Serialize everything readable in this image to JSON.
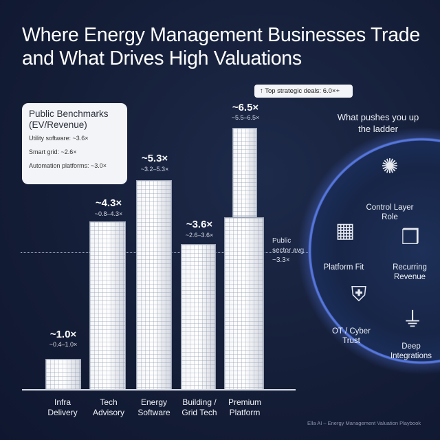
{
  "title": "Where Energy Management Businesses Trade and What Drives High Valuations",
  "benchmarks": {
    "heading": "Public Benchmarks (EV/Revenue)",
    "items": [
      "Utility software: ~3.6×",
      "Smart grid: ~2.6×",
      "Automation platforms: ~3.0×"
    ]
  },
  "tiers": [
    {
      "category": "Infra Delivery",
      "multiple": "~1.0×",
      "range": "~0.4–1.0×"
    },
    {
      "category": "Tech Advisory",
      "multiple": "~4.3×",
      "range": "~0.8–4.3×"
    },
    {
      "category": "Energy Software",
      "multiple": "~5.3×",
      "range": "~3.2–5.3×"
    },
    {
      "category": "Building / Grid Tech",
      "multiple": "~3.6×",
      "range": "~2.6–3.6×"
    },
    {
      "category": "Premium Platform",
      "multiple": "~6.5×",
      "range": "~5.5–6.5×"
    }
  ],
  "top_deals": "↑ Top strategic deals: 6.0×+",
  "public_avg": "Public sector avg ~3.3×",
  "drivers": {
    "heading": "What pushes you up the ladder",
    "items": [
      "Control Layer Role",
      "Platform Fit",
      "Recurring Revenue",
      "OT / Cyber Trust",
      "Deep Integrations"
    ]
  },
  "footer": "Ella AI – Energy Management Valuation Playbook",
  "colors": {
    "background": "#141d36",
    "accent": "#4e6fd6",
    "building": "#f4f5f8"
  }
}
